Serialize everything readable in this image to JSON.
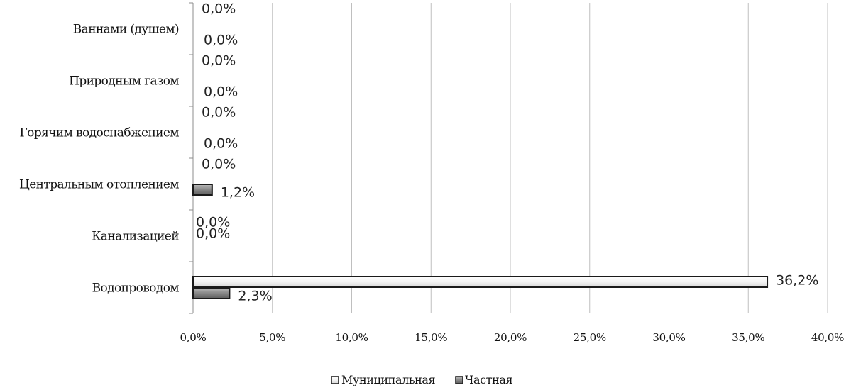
{
  "chart_data": {
    "type": "bar",
    "orientation": "horizontal",
    "categories": [
      "Водопроводом",
      "Канализацией",
      "Центральным отоплением",
      "Горячим водоснабжением",
      "Природным газом",
      "Ваннами (душем)"
    ],
    "series": [
      {
        "name": "Муниципальная",
        "values": [
          36.2,
          0.0,
          0.0,
          0.0,
          0.0,
          0.0
        ],
        "labels": [
          "36,2%",
          "0,0%",
          "0,0%",
          "0,0%",
          "0,0%",
          "0,0%"
        ],
        "color": "#f4f4f4"
      },
      {
        "name": "Частная",
        "values": [
          2.3,
          0.0,
          1.2,
          0.0,
          0.0,
          0.0
        ],
        "labels": [
          "2,3%",
          "0,0%",
          "1,2%",
          "0,0%",
          "0,0%",
          "0,0%"
        ],
        "color": "#8a8a8a"
      }
    ],
    "x_ticks": [
      "0,0%",
      "5,0%",
      "10,0%",
      "15,0%",
      "20,0%",
      "25,0%",
      "30,0%",
      "35,0%",
      "40,0%"
    ],
    "xlim": [
      0,
      40
    ],
    "grid": true,
    "legend": "bottom",
    "title": "",
    "xlabel": "",
    "ylabel": ""
  }
}
